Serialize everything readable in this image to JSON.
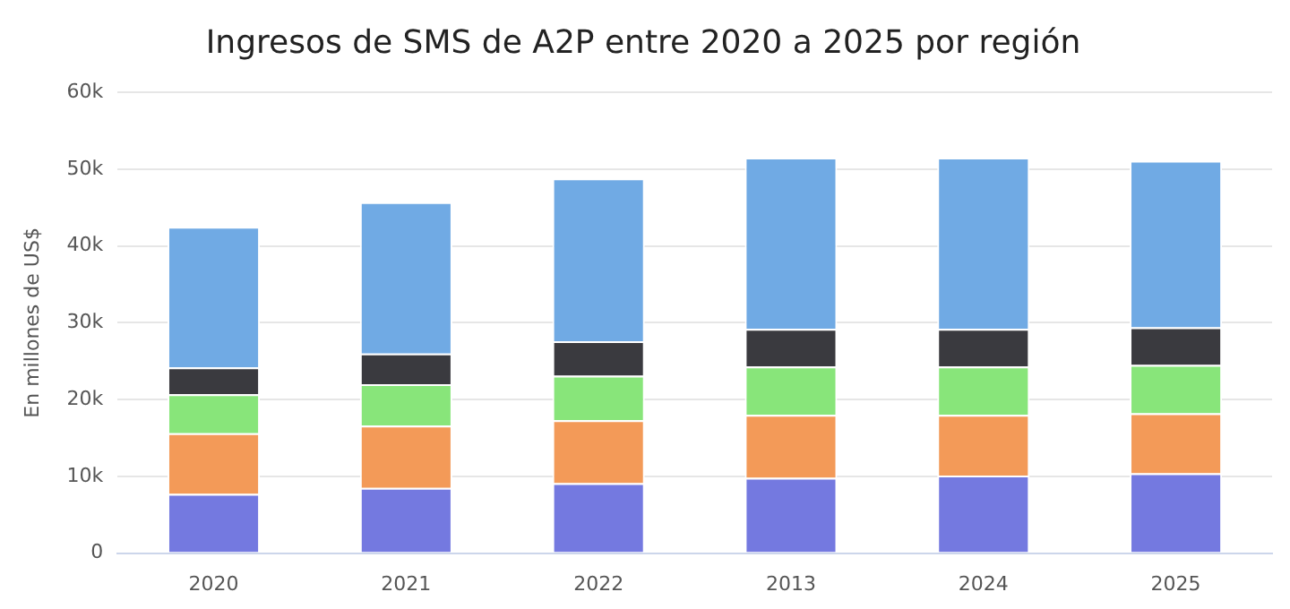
{
  "chart_data": {
    "type": "bar",
    "title": "Ingresos de SMS de A2P entre 2020 a 2025 por región",
    "ylabel": "En millones de US$",
    "categories": [
      "2020",
      "2021",
      "2022",
      "2013",
      "2024",
      "2025"
    ],
    "stacked": true,
    "series": [
      {
        "color": "#7479e0",
        "values": [
          7700,
          8500,
          9100,
          9800,
          10100,
          10400
        ]
      },
      {
        "color": "#f39a58",
        "values": [
          7900,
          8100,
          8200,
          8200,
          7900,
          7800
        ]
      },
      {
        "color": "#88e57a",
        "values": [
          5100,
          5400,
          5800,
          6300,
          6300,
          6300
        ]
      },
      {
        "color": "#3a3a3f",
        "values": [
          3500,
          4000,
          4500,
          4900,
          4900,
          4900
        ]
      },
      {
        "color": "#70aae4",
        "values": [
          18300,
          19700,
          21200,
          22300,
          22300,
          21700
        ]
      }
    ],
    "ylim": [
      0,
      60000
    ],
    "yticks": [
      0,
      {
        "value": 10000,
        "label": "10k"
      },
      {
        "value": 20000,
        "label": "20k"
      },
      {
        "value": 30000,
        "label": "30k"
      },
      {
        "value": 40000,
        "label": "40k"
      },
      {
        "value": 50000,
        "label": "50k"
      },
      {
        "value": 60000,
        "label": "60k"
      }
    ],
    "grid": "y",
    "legend": false
  }
}
